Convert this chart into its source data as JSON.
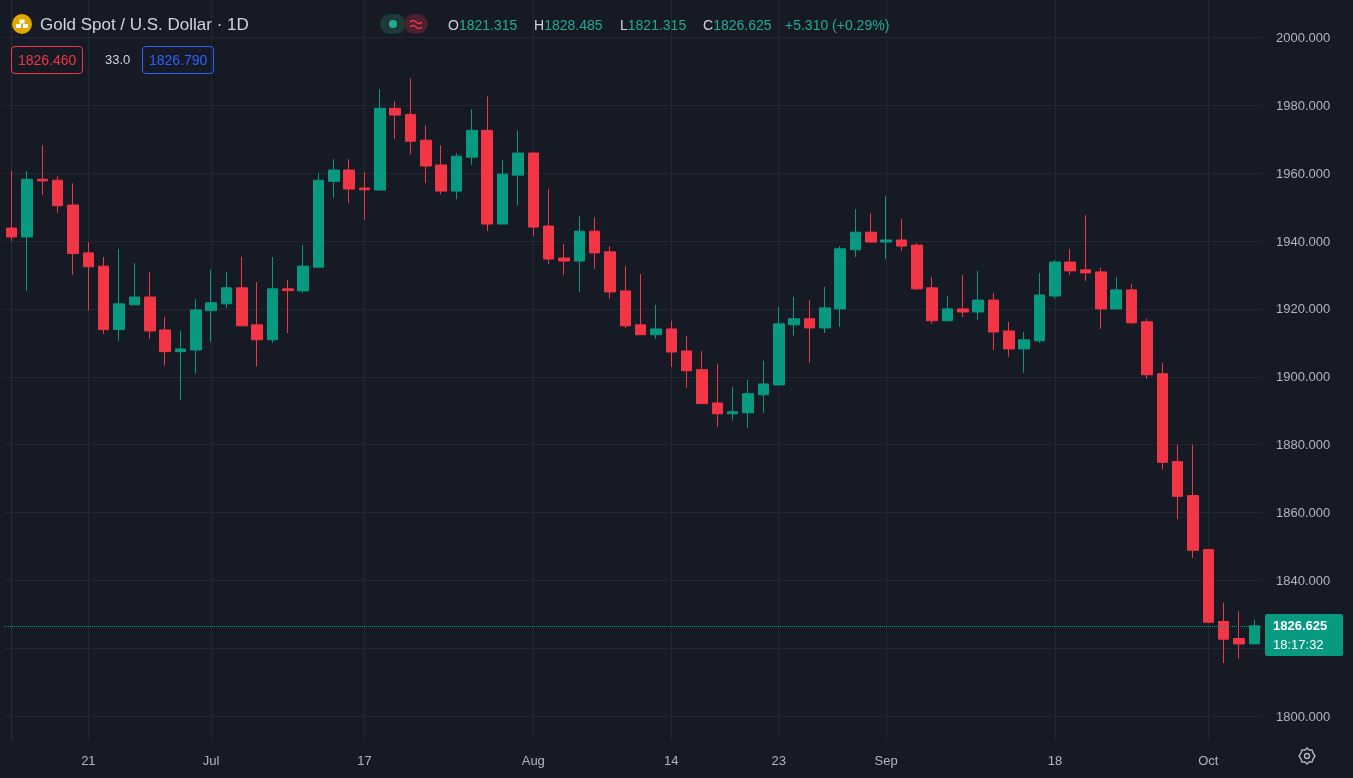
{
  "chart_data": {
    "type": "candlestick",
    "title": "Gold Spot / U.S. Dollar · 1D",
    "categories": [
      null,
      null,
      null,
      null,
      null,
      "21",
      null,
      null,
      null,
      null,
      null,
      null,
      null,
      "Jul",
      null,
      null,
      null,
      null,
      null,
      null,
      null,
      null,
      null,
      "17",
      null,
      null,
      null,
      null,
      null,
      null,
      null,
      null,
      null,
      null,
      "Aug",
      null,
      null,
      null,
      null,
      null,
      null,
      null,
      null,
      "14",
      null,
      null,
      null,
      null,
      null,
      null,
      "23",
      null,
      null,
      null,
      null,
      null,
      null,
      "Sep",
      null,
      null,
      null,
      null,
      null,
      null,
      null,
      null,
      null,
      null,
      "18",
      null,
      null,
      null,
      null,
      null,
      null,
      null,
      null,
      null,
      "Oct",
      null,
      null,
      null
    ],
    "ohlc": [
      [
        1943.8,
        1960.6,
        1940.0,
        1941.2
      ],
      [
        1941.2,
        1960.6,
        1925.4,
        1958.2
      ],
      [
        1958.2,
        1968.2,
        1953.6,
        1957.7
      ],
      [
        1957.9,
        1959.1,
        1948.3,
        1950.4
      ],
      [
        1950.6,
        1957.0,
        1930.1,
        1936.3
      ],
      [
        1936.5,
        1939.7,
        1919.5,
        1932.4
      ],
      [
        1932.6,
        1935.3,
        1912.6,
        1913.9
      ],
      [
        1913.9,
        1937.6,
        1910.6,
        1921.5
      ],
      [
        1921.2,
        1933.5,
        1921.2,
        1923.5
      ],
      [
        1923.5,
        1930.9,
        1911.2,
        1913.5
      ],
      [
        1913.8,
        1917.6,
        1903.3,
        1907.4
      ],
      [
        1907.4,
        1913.5,
        1893.2,
        1908.2
      ],
      [
        1907.9,
        1922.9,
        1900.9,
        1919.7
      ],
      [
        1919.5,
        1931.5,
        1910.3,
        1921.8
      ],
      [
        1921.5,
        1930.9,
        1920.3,
        1926.2
      ],
      [
        1926.2,
        1935.3,
        1915.0,
        1915.0
      ],
      [
        1915.3,
        1927.9,
        1903.0,
        1910.9
      ],
      [
        1910.9,
        1935.3,
        1910.0,
        1925.9
      ],
      [
        1925.9,
        1928.5,
        1912.9,
        1925.4
      ],
      [
        1925.3,
        1938.8,
        1924.7,
        1932.6
      ],
      [
        1932.3,
        1960.0,
        1932.3,
        1957.9
      ],
      [
        1957.6,
        1964.1,
        1952.7,
        1960.9
      ],
      [
        1960.9,
        1964.1,
        1951.2,
        1955.3
      ],
      [
        1955.6,
        1960.3,
        1946.2,
        1955.1
      ],
      [
        1955.0,
        1984.7,
        1955.0,
        1979.1
      ],
      [
        1979.1,
        1981.2,
        1970.0,
        1977.1
      ],
      [
        1977.3,
        1987.9,
        1965.6,
        1969.4
      ],
      [
        1969.7,
        1974.1,
        1957.1,
        1962.1
      ],
      [
        1962.4,
        1968.2,
        1953.8,
        1954.7
      ],
      [
        1954.7,
        1965.9,
        1952.3,
        1965.0
      ],
      [
        1964.7,
        1978.8,
        1962.4,
        1972.6
      ],
      [
        1972.6,
        1982.6,
        1942.9,
        1945.0
      ],
      [
        1945.0,
        1963.8,
        1945.0,
        1959.7
      ],
      [
        1959.4,
        1972.6,
        1950.6,
        1965.9
      ],
      [
        1965.9,
        1966.2,
        1941.5,
        1944.1
      ],
      [
        1944.4,
        1955.3,
        1933.2,
        1934.7
      ],
      [
        1935.0,
        1939.1,
        1930.0,
        1934.1
      ],
      [
        1934.1,
        1947.3,
        1925.0,
        1942.9
      ],
      [
        1942.9,
        1947.0,
        1931.8,
        1936.5
      ],
      [
        1936.8,
        1938.5,
        1923.0,
        1925.0
      ],
      [
        1925.3,
        1932.6,
        1914.4,
        1915.0
      ],
      [
        1915.3,
        1930.3,
        1912.3,
        1912.4
      ],
      [
        1912.4,
        1921.2,
        1911.2,
        1914.1
      ],
      [
        1914.1,
        1916.5,
        1902.9,
        1907.3
      ],
      [
        1907.6,
        1912.1,
        1896.8,
        1901.8
      ],
      [
        1902.1,
        1907.6,
        1892.1,
        1892.1
      ],
      [
        1892.3,
        1903.8,
        1885.3,
        1889.1
      ],
      [
        1889.1,
        1897.1,
        1887.1,
        1889.7
      ],
      [
        1889.4,
        1899.1,
        1885.0,
        1895.0
      ],
      [
        1894.7,
        1904.7,
        1889.4,
        1897.9
      ],
      [
        1897.6,
        1920.6,
        1897.6,
        1915.6
      ],
      [
        1915.3,
        1923.5,
        1912.1,
        1917.1
      ],
      [
        1917.1,
        1922.6,
        1904.1,
        1914.4
      ],
      [
        1914.4,
        1926.5,
        1912.9,
        1920.3
      ],
      [
        1920.0,
        1938.5,
        1914.7,
        1937.7
      ],
      [
        1937.4,
        1949.4,
        1935.3,
        1942.6
      ],
      [
        1942.6,
        1948.2,
        1939.4,
        1939.7
      ],
      [
        1939.7,
        1953.2,
        1934.7,
        1940.3
      ],
      [
        1940.3,
        1946.5,
        1937.1,
        1938.5
      ],
      [
        1938.8,
        1939.4,
        1925.6,
        1925.9
      ],
      [
        1926.2,
        1929.4,
        1915.6,
        1916.5
      ],
      [
        1916.5,
        1923.8,
        1916.5,
        1920.0
      ],
      [
        1920.0,
        1930.0,
        1917.6,
        1919.1
      ],
      [
        1919.1,
        1931.2,
        1916.8,
        1922.6
      ],
      [
        1922.6,
        1924.7,
        1907.9,
        1913.2
      ],
      [
        1913.5,
        1916.2,
        1905.9,
        1908.2
      ],
      [
        1908.2,
        1913.2,
        1901.2,
        1910.9
      ],
      [
        1910.6,
        1930.6,
        1910.0,
        1924.1
      ],
      [
        1923.8,
        1934.4,
        1923.0,
        1933.8
      ],
      [
        1933.8,
        1937.6,
        1930.0,
        1931.2
      ],
      [
        1931.5,
        1947.6,
        1928.2,
        1930.6
      ],
      [
        1930.9,
        1932.1,
        1914.1,
        1920.0
      ],
      [
        1920.0,
        1929.4,
        1920.0,
        1925.6
      ],
      [
        1925.6,
        1927.4,
        1915.6,
        1915.9
      ],
      [
        1916.2,
        1917.1,
        1899.4,
        1900.6
      ],
      [
        1900.9,
        1904.1,
        1872.7,
        1874.8
      ],
      [
        1875.0,
        1880.0,
        1858.0,
        1864.8
      ],
      [
        1865.0,
        1880.0,
        1846.6,
        1848.9
      ],
      [
        1849.1,
        1849.1,
        1827.4,
        1827.7
      ],
      [
        1827.9,
        1833.5,
        1815.7,
        1822.7
      ],
      [
        1822.9,
        1830.9,
        1816.9,
        1821.3
      ],
      [
        1821.315,
        1828.485,
        1821.315,
        1826.625
      ]
    ],
    "colors": [
      "#f23645",
      "#089981",
      "#f23645",
      "#f23645",
      "#f23645",
      "#f23645",
      "#f23645",
      "#089981",
      "#089981",
      "#f23645",
      "#f23645",
      "#089981",
      "#089981",
      "#089981",
      "#089981",
      "#f23645",
      "#f23645",
      "#089981",
      "#f23645",
      "#089981",
      "#089981",
      "#089981",
      "#f23645",
      "#f23645",
      "#089981",
      "#f23645",
      "#f23645",
      "#f23645",
      "#f23645",
      "#089981",
      "#089981",
      "#f23645",
      "#089981",
      "#089981",
      "#f23645",
      "#f23645",
      "#f23645",
      "#089981",
      "#f23645",
      "#f23645",
      "#f23645",
      "#f23645",
      "#089981",
      "#f23645",
      "#f23645",
      "#f23645",
      "#f23645",
      "#089981",
      "#089981",
      "#089981",
      "#089981",
      "#089981",
      "#f23645",
      "#089981",
      "#089981",
      "#089981",
      "#f23645",
      "#089981",
      "#f23645",
      "#f23645",
      "#f23645",
      "#089981",
      "#f23645",
      "#089981",
      "#f23645",
      "#f23645",
      "#089981",
      "#089981",
      "#089981",
      "#f23645",
      "#f23645",
      "#f23645",
      "#089981",
      "#f23645",
      "#f23645",
      "#f23645",
      "#f23645",
      "#f23645",
      "#f23645",
      "#f23645",
      "#f23645",
      "#089981"
    ],
    "ylim": [
      1793,
      2011
    ],
    "yticks": [
      {
        "value": 1800,
        "label": "1800.000"
      },
      {
        "value": 1820,
        "label": null
      },
      {
        "value": 1840,
        "label": "1840.000"
      },
      {
        "value": 1860,
        "label": "1860.000"
      },
      {
        "value": 1880,
        "label": "1880.000"
      },
      {
        "value": 1900,
        "label": "1900.000"
      },
      {
        "value": 1920,
        "label": "1920.000"
      },
      {
        "value": 1940,
        "label": "1940.000"
      },
      {
        "value": 1960,
        "label": "1960.000"
      },
      {
        "value": 1980,
        "label": "1980.000"
      },
      {
        "value": 2000,
        "label": "2000.000"
      }
    ],
    "grid": true,
    "ref_lines": [
      {
        "axis": "y",
        "value": 1826.625,
        "label": "1826.625",
        "color": "#089981",
        "line_style": "dotted"
      }
    ],
    "annotations": [
      "O1821.315",
      "H1828.485",
      "L1821.315",
      "C1826.625",
      "+5.310 (+0.29%)",
      "1826.460",
      "33.0",
      "1826.790",
      "18:17:32"
    ]
  }
}
